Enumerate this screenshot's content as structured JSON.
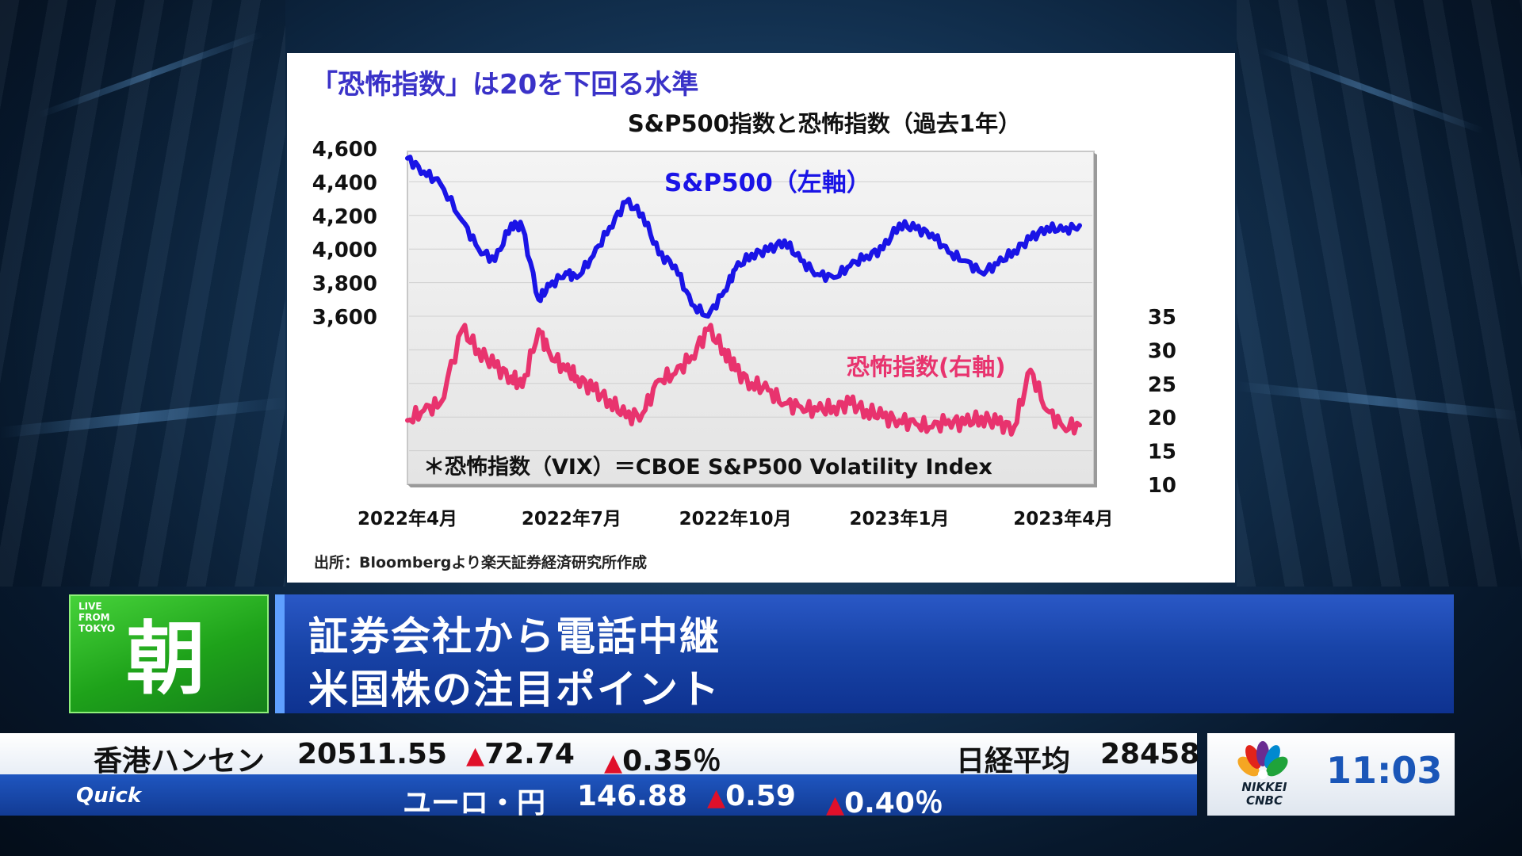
{
  "chart_panel": {
    "headline": "「恐怖指数」は20を下回る水準",
    "source_note": "出所：Bloombergより楽天証券経済研究所作成",
    "footnote": "＊恐怖指数（VIX）＝CBOE S&P500 Volatility Index"
  },
  "chart_data": {
    "type": "line",
    "title": "S&P500指数と恐怖指数（過去1年）",
    "x_tick_labels": [
      "2022年4月",
      "2022年7月",
      "2022年10月",
      "2023年1月",
      "2023年4月"
    ],
    "y_left_tick_labels": [
      "4,600",
      "4,400",
      "4,200",
      "4,000",
      "3,800",
      "3,600"
    ],
    "y_right_tick_labels": [
      "35",
      "30",
      "25",
      "20",
      "15",
      "10"
    ],
    "y_left_range": [
      3600,
      4600
    ],
    "y_right_range": [
      10,
      35
    ],
    "x_range": [
      0,
      12.3
    ],
    "x_unit": "months since 2022年4月",
    "grid": true,
    "series": [
      {
        "name": "S&P500（左軸）",
        "axis": "left",
        "color": "#1a14e6",
        "x": [
          0,
          0.3,
          0.6,
          1.0,
          1.3,
          1.6,
          1.9,
          2.1,
          2.4,
          2.6,
          2.9,
          3.1,
          3.4,
          3.7,
          4.0,
          4.3,
          4.6,
          4.9,
          5.2,
          5.5,
          5.8,
          6.0,
          6.3,
          6.6,
          6.9,
          7.2,
          7.5,
          7.8,
          8.1,
          8.4,
          8.7,
          9.0,
          9.3,
          9.6,
          9.9,
          10.2,
          10.5,
          10.8,
          11.1,
          11.4,
          11.7,
          12.0,
          12.3
        ],
        "values": [
          4540,
          4460,
          4390,
          4170,
          4000,
          3930,
          4150,
          4130,
          3700,
          3780,
          3860,
          3830,
          3960,
          4130,
          4280,
          4210,
          3970,
          3900,
          3670,
          3600,
          3750,
          3880,
          3970,
          3990,
          4050,
          3930,
          3850,
          3830,
          3900,
          3960,
          4000,
          4150,
          4120,
          4090,
          3980,
          3930,
          3860,
          3910,
          3990,
          4060,
          4130,
          4110,
          4140
        ]
      },
      {
        "name": "恐怖指数(右軸)",
        "axis": "right",
        "color": "#e8336e",
        "x": [
          0,
          0.3,
          0.6,
          1.0,
          1.3,
          1.6,
          1.9,
          2.1,
          2.4,
          2.6,
          2.9,
          3.1,
          3.4,
          3.7,
          4.0,
          4.3,
          4.6,
          4.9,
          5.2,
          5.5,
          5.8,
          6.0,
          6.3,
          6.6,
          6.9,
          7.2,
          7.5,
          7.8,
          8.1,
          8.4,
          8.7,
          9.0,
          9.3,
          9.6,
          9.9,
          10.2,
          10.5,
          10.8,
          11.1,
          11.4,
          11.7,
          12.0,
          12.3
        ],
        "values": [
          19.5,
          21,
          22,
          33,
          30,
          27.5,
          26,
          24.5,
          33,
          29.5,
          27,
          26,
          24,
          22.5,
          20,
          20.5,
          25.5,
          26.5,
          29,
          33,
          30,
          27,
          25,
          24,
          22,
          21.5,
          21,
          21.5,
          22,
          21,
          20,
          19.5,
          19,
          18.5,
          19.5,
          19,
          20,
          19,
          18.5,
          27,
          21,
          18.5,
          18.8
        ]
      }
    ]
  },
  "program": {
    "live_from": [
      "LIVE",
      "FROM",
      "TOKYO"
    ],
    "show_kanji": "朝",
    "title_line1": "証券会社から電話中継",
    "title_line2": "米国株の注目ポイント"
  },
  "ticker": {
    "hk_label": "香港ハンセン",
    "hk_value": "20511.55",
    "hk_change": "72.74",
    "hk_change_pct": "0.35％",
    "nikkei_label": "日経平均",
    "nikkei_value": "28458",
    "source": "Quick",
    "fx_label": "ユーロ・円",
    "fx_value": "146.88",
    "fx_change": "0.59",
    "fx_change_pct": "0.40％",
    "up_marker": "▲"
  },
  "clock": {
    "network_line1": "NIKKEI",
    "network_line2": "CNBC",
    "time": "11:03"
  },
  "colors": {
    "sp500_line": "#1a14e6",
    "vix_line": "#e8336e",
    "headline": "#3a32c8",
    "up": "#e0102a"
  }
}
